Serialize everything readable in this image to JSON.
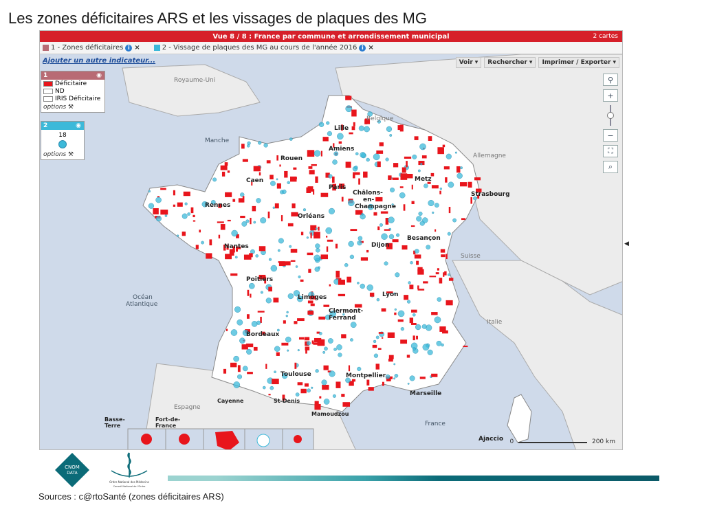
{
  "title": "Les zones déficitaires ARS et les vissages de plaques des MG",
  "view_bar": {
    "label": "Vue 8 / 8 : France par commune et arrondissement municipal",
    "count": "2 cartes"
  },
  "layers": [
    {
      "label": "1 - Zones déficitaires",
      "color": "#b86b74"
    },
    {
      "label": "2 - Vissage de plaques des MG au cours de l'année 2016",
      "color": "#3cb9d9"
    }
  ],
  "add_indicator": "Ajouter un autre indicateur...",
  "toolbar": [
    "Voir",
    "Rechercher",
    "Imprimer / Exporter"
  ],
  "legend1": {
    "num": "1",
    "items": [
      {
        "label": "Déficitaire",
        "color": "#e8151c"
      },
      {
        "label": "ND",
        "color": "#ffffff"
      },
      {
        "label": "IRIS Déficitaire",
        "color": "#ffffff"
      }
    ],
    "options": "options"
  },
  "legend2": {
    "num": "2",
    "value": "18",
    "options": "options"
  },
  "sea_labels": [
    "Manche",
    "Océan",
    "Atlantique"
  ],
  "country_labels": [
    "Royaume-Uni",
    "Belgique",
    "Allemagne",
    "Suisse",
    "Italie",
    "Espagne",
    "France"
  ],
  "cities": [
    "Lille",
    "Amiens",
    "Rouen",
    "Caen",
    "Paris",
    "Châlons-",
    "en-",
    "Champagne",
    "Metz",
    "Strasbourg",
    "Rennes",
    "Orléans",
    "Nantes",
    "Dijon",
    "Besançon",
    "Poitiers",
    "Limoges",
    "Lyon",
    "Clermont-",
    "Ferrand",
    "Bordeaux",
    "Toulouse",
    "Montpellier",
    "Marseille",
    "Ajaccio"
  ],
  "overseas": [
    "Basse-",
    "Terre",
    "Fort-de-",
    "France",
    "Cayenne",
    "St-Denis",
    "Mamoudzou"
  ],
  "scale": {
    "zero": "0",
    "label": "200 km"
  },
  "sources": "Sources : c@rtoSanté (zones déficitaires ARS)",
  "logo_text": {
    "cnom1": "CNOM",
    "cnom2": "DATA",
    "ordre1": "Ordre National des Médecins",
    "ordre2": "Conseil National de l'Ordre"
  },
  "colors": {
    "deficit": "#e8151c",
    "plaque": "#3cb9d9",
    "sea": "#cfdaea",
    "land": "#ececec",
    "france": "#ffffff"
  }
}
